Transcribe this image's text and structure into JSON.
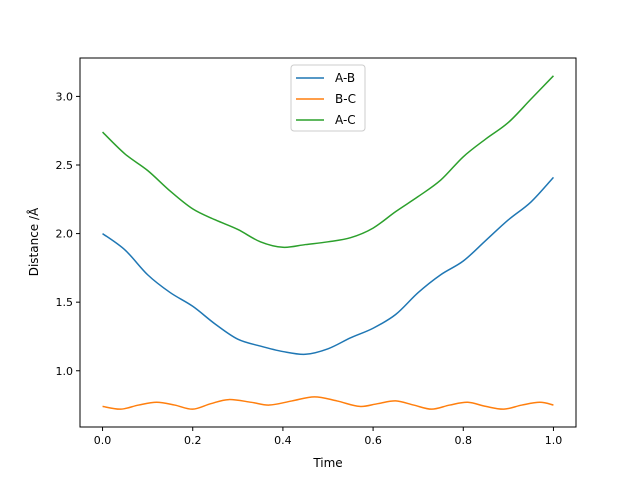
{
  "chart_data": {
    "type": "line",
    "title": "",
    "xlabel": "Time",
    "ylabel": "Distance /Å",
    "xlim": [
      -0.05,
      1.05
    ],
    "ylim": [
      0.59,
      3.28
    ],
    "xticks": [
      0.0,
      0.2,
      0.4,
      0.6,
      0.8,
      1.0
    ],
    "xtick_labels": [
      "0.0",
      "0.2",
      "0.4",
      "0.6",
      "0.8",
      "1.0"
    ],
    "yticks": [
      1.0,
      1.5,
      2.0,
      2.5,
      3.0
    ],
    "ytick_labels": [
      "1.0",
      "1.5",
      "2.0",
      "2.5",
      "3.0"
    ],
    "grid": false,
    "legend_position": "top-center",
    "series": [
      {
        "name": "A-B",
        "color": "#1f77b4",
        "x": [
          0,
          0.05,
          0.1,
          0.15,
          0.2,
          0.25,
          0.3,
          0.35,
          0.4,
          0.45,
          0.5,
          0.55,
          0.6,
          0.65,
          0.7,
          0.75,
          0.8,
          0.85,
          0.9,
          0.95,
          1.0
        ],
        "y": [
          2.0,
          1.88,
          1.7,
          1.57,
          1.47,
          1.34,
          1.23,
          1.18,
          1.14,
          1.12,
          1.16,
          1.24,
          1.31,
          1.41,
          1.57,
          1.7,
          1.8,
          1.95,
          2.1,
          2.23,
          2.41
        ]
      },
      {
        "name": "B-C",
        "color": "#ff7f0e",
        "x": [
          0,
          0.04,
          0.08,
          0.12,
          0.16,
          0.2,
          0.24,
          0.28,
          0.33,
          0.37,
          0.42,
          0.47,
          0.52,
          0.57,
          0.61,
          0.65,
          0.69,
          0.73,
          0.77,
          0.81,
          0.85,
          0.89,
          0.93,
          0.97,
          1.0
        ],
        "y": [
          0.74,
          0.72,
          0.75,
          0.77,
          0.75,
          0.72,
          0.76,
          0.79,
          0.77,
          0.75,
          0.78,
          0.81,
          0.78,
          0.74,
          0.76,
          0.78,
          0.75,
          0.72,
          0.75,
          0.77,
          0.74,
          0.72,
          0.75,
          0.77,
          0.75
        ]
      },
      {
        "name": "A-C",
        "color": "#2ca02c",
        "x": [
          0,
          0.05,
          0.1,
          0.15,
          0.2,
          0.25,
          0.3,
          0.35,
          0.4,
          0.45,
          0.5,
          0.55,
          0.6,
          0.65,
          0.7,
          0.75,
          0.8,
          0.85,
          0.9,
          0.95,
          1.0
        ],
        "y": [
          2.74,
          2.58,
          2.46,
          2.31,
          2.18,
          2.1,
          2.03,
          1.94,
          1.9,
          1.92,
          1.94,
          1.97,
          2.04,
          2.16,
          2.27,
          2.39,
          2.56,
          2.69,
          2.81,
          2.98,
          3.15
        ]
      }
    ]
  }
}
